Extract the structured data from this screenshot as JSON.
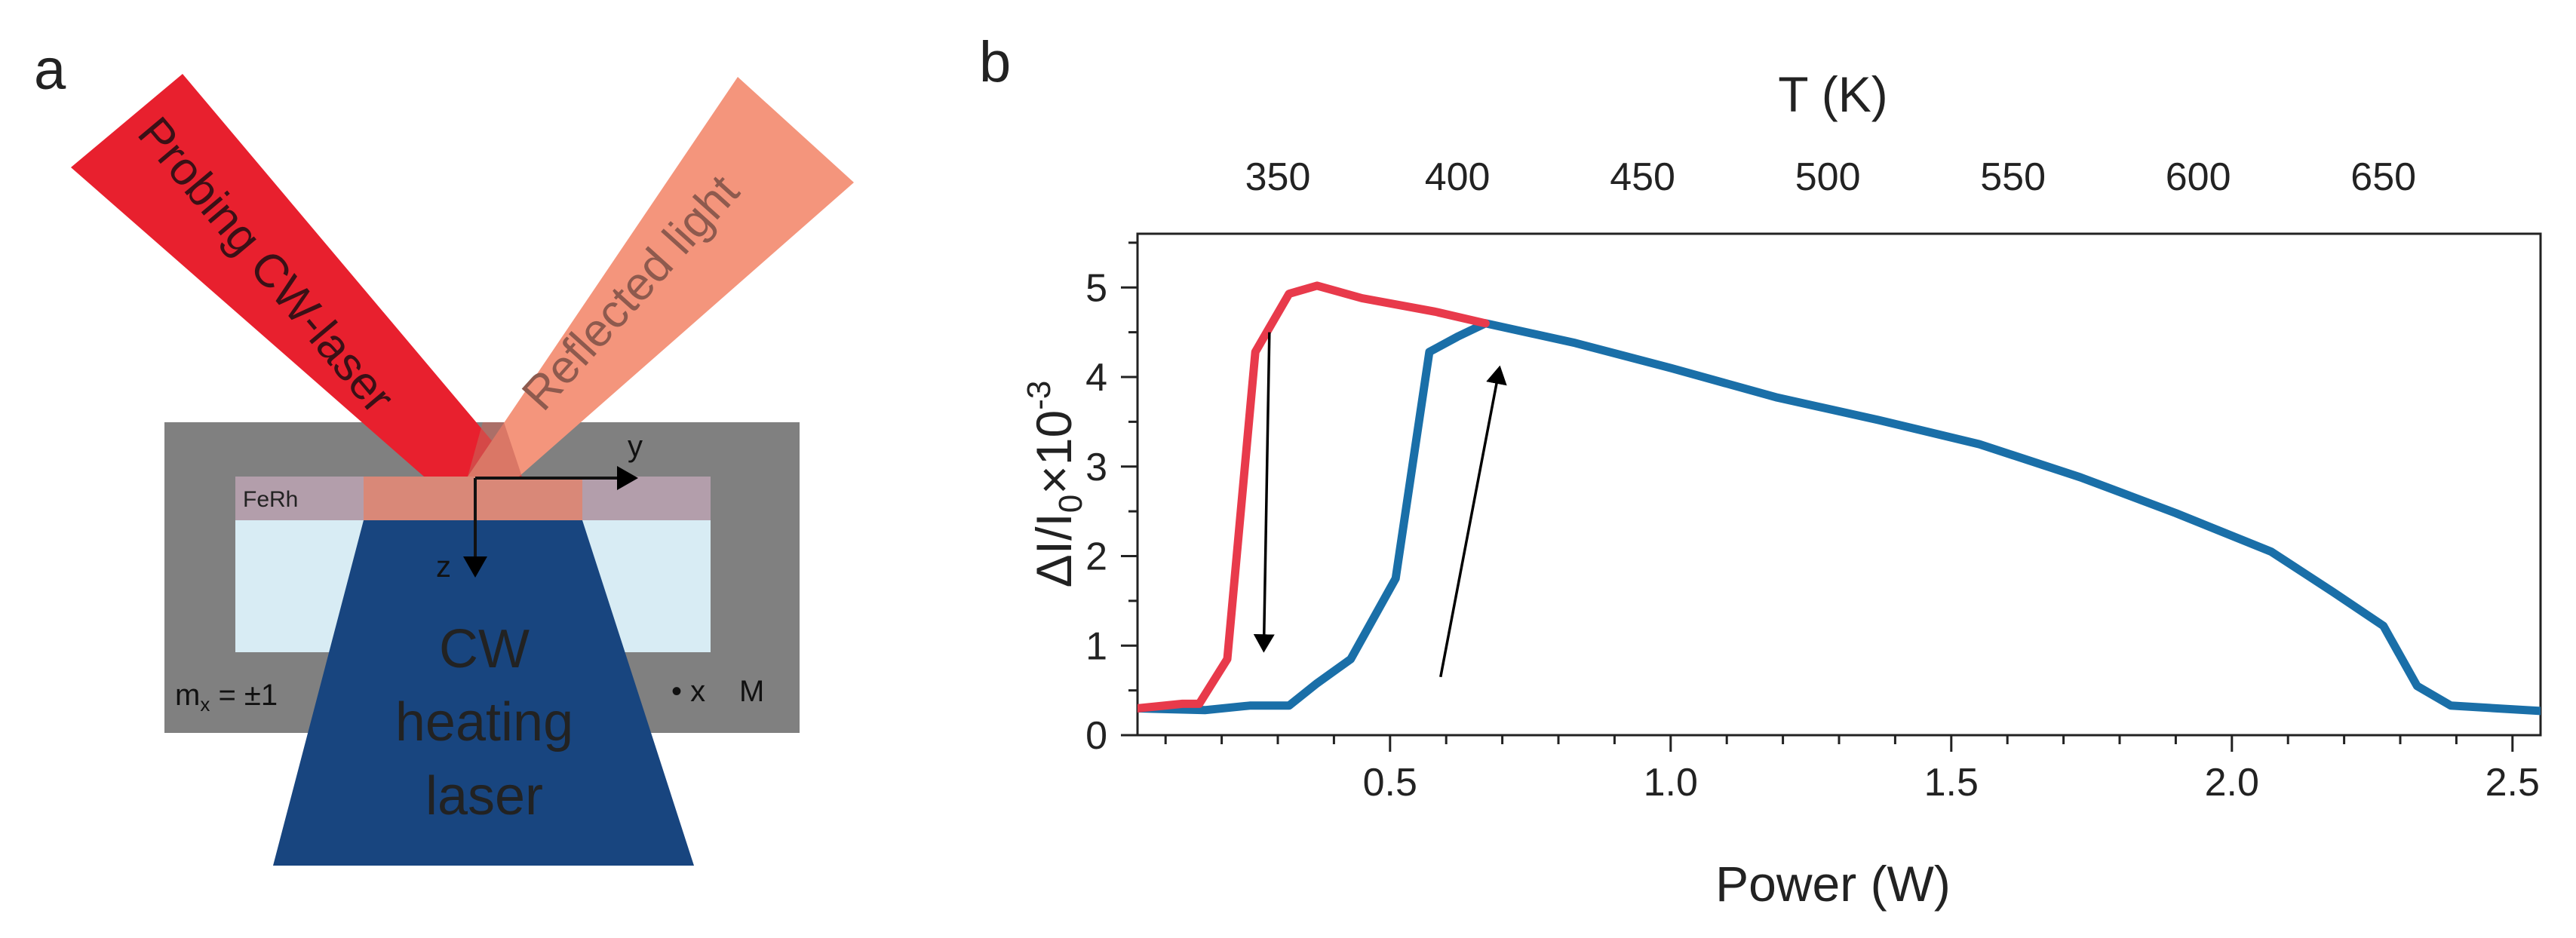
{
  "panel_a": {
    "label": "a",
    "probe_label": "Probing CW-laser",
    "reflected_label": "Reflected light",
    "ferh_label": "FeRh",
    "axis_y_label": "y",
    "axis_z_label": "z",
    "heating_line1": "CW",
    "heating_line2": "heating",
    "heating_line3": "laser",
    "mx_label": "m",
    "mx_sub": "x",
    "mx_value": " = ±1",
    "x_dot_label": "• x",
    "m_label": "M",
    "colors": {
      "probe": "#e8202e",
      "reflected": "#f4957c",
      "sample_box": "#808080",
      "ferh": "#b39eab",
      "substrate": "#d8ecf4",
      "heating": "#18457f"
    }
  },
  "panel_b": {
    "label": "b",
    "top_axis_label": "T (K)",
    "x_axis_label": "Power (W)",
    "y_axis_label_main": "ΔI/I",
    "y_axis_label_sub": "0",
    "y_axis_label_tail": "×10",
    "y_axis_label_sup": "-3",
    "x_ticks": [
      "0.5",
      "1.0",
      "1.5",
      "2.0",
      "2.5"
    ],
    "y_ticks": [
      "0",
      "1",
      "2",
      "3",
      "4",
      "5"
    ],
    "top_ticks": [
      "350",
      "400",
      "450",
      "500",
      "550",
      "600",
      "650"
    ]
  },
  "chart_data": {
    "type": "line",
    "xlabel": "Power (W)",
    "ylabel": "ΔI/I0×10-3",
    "top_xlabel": "T (K)",
    "xlim": [
      0.05,
      2.55
    ],
    "ylim": [
      0,
      5.6
    ],
    "x_ticks": [
      0.5,
      1.0,
      1.5,
      2.0,
      2.5
    ],
    "y_ticks": [
      0,
      1,
      2,
      3,
      4,
      5
    ],
    "top_axis_ticks": [
      {
        "label": "350",
        "x": 0.3
      },
      {
        "label": "400",
        "x": 0.62
      },
      {
        "label": "450",
        "x": 0.95
      },
      {
        "label": "500",
        "x": 1.28
      },
      {
        "label": "550",
        "x": 1.61
      },
      {
        "label": "600",
        "x": 1.94
      },
      {
        "label": "650",
        "x": 2.27
      }
    ],
    "grid": false,
    "series": [
      {
        "color": "#1a6fa8",
        "points": [
          [
            0.05,
            0.3
          ],
          [
            0.17,
            0.28
          ],
          [
            0.25,
            0.33
          ],
          [
            0.32,
            0.33
          ],
          [
            0.37,
            0.58
          ],
          [
            0.43,
            0.85
          ],
          [
            0.51,
            1.75
          ],
          [
            0.57,
            4.28
          ],
          [
            0.62,
            4.45
          ],
          [
            0.67,
            4.6
          ],
          [
            0.83,
            4.38
          ],
          [
            1.0,
            4.1
          ],
          [
            1.19,
            3.77
          ],
          [
            1.37,
            3.52
          ],
          [
            1.55,
            3.25
          ],
          [
            1.73,
            2.88
          ],
          [
            1.9,
            2.48
          ],
          [
            2.07,
            2.05
          ],
          [
            2.18,
            1.6
          ],
          [
            2.27,
            1.22
          ],
          [
            2.33,
            0.55
          ],
          [
            2.39,
            0.33
          ],
          [
            2.55,
            0.27
          ]
        ]
      },
      {
        "color": "#e83a4b",
        "points": [
          [
            0.05,
            0.3
          ],
          [
            0.13,
            0.35
          ],
          [
            0.16,
            0.35
          ],
          [
            0.21,
            0.85
          ],
          [
            0.26,
            4.28
          ],
          [
            0.32,
            4.93
          ],
          [
            0.37,
            5.02
          ],
          [
            0.45,
            4.88
          ],
          [
            0.58,
            4.73
          ],
          [
            0.67,
            4.6
          ]
        ]
      }
    ],
    "annotations": [
      {
        "type": "arrow",
        "from": [
          0.285,
          4.5
        ],
        "to": [
          0.275,
          0.95
        ],
        "color": "#000000"
      },
      {
        "type": "arrow",
        "from": [
          0.59,
          0.65
        ],
        "to": [
          0.695,
          4.1
        ],
        "color": "#000000"
      }
    ]
  }
}
